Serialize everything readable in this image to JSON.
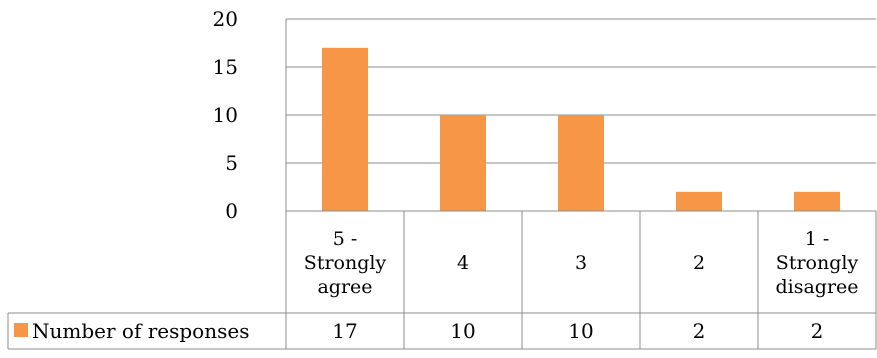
{
  "chart_data": {
    "type": "bar",
    "categories": [
      [
        "5 -",
        "Strongly",
        "agree"
      ],
      [
        "4"
      ],
      [
        "3"
      ],
      [
        "2"
      ],
      [
        "1 -",
        "Strongly",
        "disagree"
      ]
    ],
    "series": [
      {
        "name": "Number of responses",
        "values": [
          17,
          10,
          10,
          2,
          2
        ],
        "color": "#F79646"
      }
    ],
    "ylim": [
      0,
      20
    ],
    "yticks": [
      0,
      5,
      10,
      15,
      20
    ],
    "grid": true,
    "legend": "data-table-left",
    "data_table": true
  }
}
